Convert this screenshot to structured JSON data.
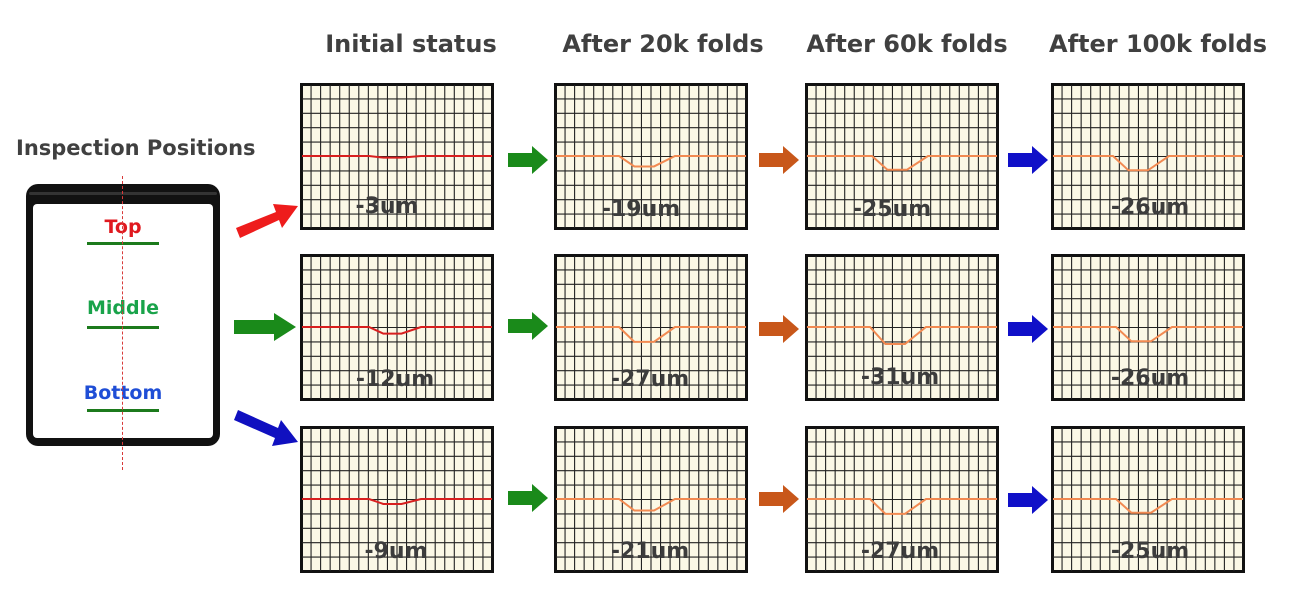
{
  "column_titles": [
    "Initial status",
    "After 20k folds",
    "After 60k folds",
    "After 100k folds"
  ],
  "side_title": "Inspection Positions",
  "positions": [
    {
      "label": "Top",
      "color": "#e0191f"
    },
    {
      "label": "Middle",
      "color": "#19a34a"
    },
    {
      "label": "Bottom",
      "color": "#1f4ed6"
    }
  ],
  "values": [
    [
      "-3um",
      "-19um",
      "-25um",
      "-26um"
    ],
    [
      "-12um",
      "-27um",
      "-31um",
      "-26um"
    ],
    [
      "-9um",
      "-21um",
      "-27um",
      "-25um"
    ]
  ],
  "colors": {
    "panel_bg": "#fbf8e6",
    "grid": "#222222",
    "initial_line": "#d81f1f",
    "fold_line": "#f28a52",
    "arrow_20k": "#1a8a1a",
    "arrow_60k": "#c8571a",
    "arrow_100k": "#1010c8",
    "arrow_top": "#ee1c1c",
    "arrow_middle": "#1a8a1a",
    "arrow_bottom": "#1010c0"
  }
}
